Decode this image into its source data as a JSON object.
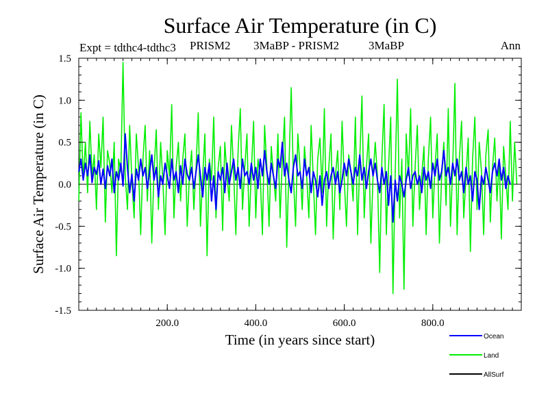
{
  "chart_data": {
    "type": "line",
    "title": "Surface Air Temperature (in C)",
    "subtitle_left": "Expt = tdthc4-tdthc3",
    "subtitle_mid1": "PRISM2",
    "subtitle_mid2": "3MaBP - PRISM2",
    "subtitle_mid3": "3MaBP",
    "subtitle_right": "Ann",
    "xlabel": "Time (in years since start)",
    "ylabel": "Surface Air Temperature (in C)",
    "xlim": [
      0,
      1000
    ],
    "ylim": [
      -1.5,
      1.5
    ],
    "x_ticks": [
      200,
      400,
      600,
      800
    ],
    "x_tick_labels": [
      "200.0",
      "400.0",
      "600.0",
      "800.0"
    ],
    "y_ticks": [
      -1.5,
      -1.0,
      -0.5,
      0.0,
      0.5,
      1.0,
      1.5
    ],
    "y_tick_labels": [
      "-1.5",
      "-1.0",
      "-0.5",
      "0.0",
      "0.5",
      "1.0",
      "1.5"
    ],
    "grid": false,
    "legend_position": "bottom-right",
    "series": [
      {
        "name": "Ocean",
        "color": "#0000ff",
        "x_start": 0,
        "x_step": 5,
        "values": [
          0.15,
          0.3,
          0.05,
          0.25,
          0.1,
          0.35,
          0.02,
          0.2,
          0.12,
          0.28,
          0.0,
          0.18,
          -0.05,
          0.22,
          0.1,
          0.3,
          -0.1,
          0.15,
          0.05,
          0.25,
          -0.02,
          0.6,
          0.2,
          -0.1,
          0.12,
          -0.2,
          0.18,
          0.05,
          0.3,
          0.1,
          0.2,
          -0.05,
          0.15,
          0.35,
          0.05,
          0.2,
          -0.15,
          0.1,
          0.0,
          0.25,
          0.1,
          -0.05,
          0.3,
          0.05,
          0.15,
          -0.1,
          0.22,
          0.0,
          0.3,
          0.12,
          0.05,
          0.2,
          -0.05,
          0.15,
          0.35,
          0.1,
          -0.15,
          0.2,
          0.05,
          0.25,
          -0.2,
          0.1,
          -0.3,
          0.15,
          0.05,
          0.2,
          -0.1,
          0.25,
          0.0,
          0.15,
          0.3,
          0.05,
          0.2,
          -0.05,
          0.3,
          0.1,
          0.15,
          0.0,
          0.25,
          0.05,
          0.2,
          -0.05,
          0.3,
          0.1,
          0.4,
          0.15,
          0.0,
          0.25,
          0.1,
          -0.05,
          0.3,
          0.2,
          0.5,
          0.1,
          0.25,
          0.05,
          -0.1,
          0.2,
          0.35,
          0.1,
          0.15,
          -0.05,
          0.3,
          0.1,
          0.2,
          -0.1,
          0.15,
          0.05,
          -0.15,
          0.1,
          -0.25,
          0.05,
          0.15,
          -0.05,
          0.1,
          0.2,
          0.0,
          0.15,
          -0.1,
          0.05,
          0.25,
          0.1,
          0.3,
          0.15,
          0.0,
          0.2,
          0.1,
          0.35,
          0.05,
          0.2,
          -0.05,
          0.15,
          0.3,
          0.1,
          0.25,
          0.05,
          -0.1,
          0.2,
          0.0,
          0.15,
          -0.25,
          0.1,
          -0.45,
          0.05,
          -0.2,
          0.1,
          0.0,
          -0.15,
          0.05,
          0.2,
          -0.05,
          0.1,
          0.15,
          0.0,
          0.1,
          -0.1,
          0.2,
          0.05,
          0.15,
          -0.05,
          0.25,
          0.1,
          0.3,
          0.05,
          0.15,
          0.4,
          0.1,
          0.2,
          0.0,
          0.25,
          0.1,
          0.3,
          0.05,
          0.15,
          -0.1,
          0.2,
          0.0,
          0.1,
          -0.2,
          0.15,
          0.05,
          -0.3,
          0.1,
          0.0,
          0.2,
          0.05,
          -0.1,
          0.15,
          0.25,
          0.1,
          0.3,
          0.05,
          0.2,
          -0.05,
          0.1,
          0.0
        ]
      },
      {
        "name": "Land",
        "color": "#00ee00",
        "x_start": 0,
        "x_step": 5,
        "values": [
          -0.2,
          0.85,
          0.05,
          0.5,
          -0.1,
          0.75,
          0.1,
          0.35,
          -0.3,
          0.6,
          0.2,
          0.8,
          -0.45,
          0.4,
          0.25,
          -0.1,
          0.5,
          -0.85,
          0.3,
          0.15,
          1.45,
          0.1,
          -0.3,
          0.7,
          0.05,
          -0.4,
          0.6,
          0.2,
          -0.6,
          0.3,
          0.7,
          -0.2,
          0.4,
          -0.7,
          0.15,
          0.65,
          -0.3,
          0.5,
          0.05,
          -0.6,
          0.4,
          0.1,
          0.95,
          -0.4,
          0.2,
          0.5,
          -0.2,
          0.3,
          0.6,
          -0.5,
          0.1,
          0.4,
          -0.3,
          0.2,
          0.85,
          -0.5,
          0.1,
          0.6,
          -0.85,
          0.3,
          0.05,
          0.8,
          -0.4,
          0.2,
          0.45,
          -0.55,
          0.5,
          0.1,
          -0.2,
          0.7,
          0.15,
          -0.6,
          0.4,
          0.9,
          -0.3,
          0.2,
          0.6,
          -0.5,
          0.15,
          0.75,
          -0.4,
          0.3,
          0.1,
          -0.6,
          0.7,
          0.2,
          -0.5,
          0.45,
          0.1,
          -0.2,
          0.6,
          -0.4,
          0.3,
          0.8,
          -0.75,
          0.2,
          1.15,
          0.1,
          -0.5,
          0.6,
          0.2,
          -0.3,
          0.45,
          0.1,
          -0.4,
          0.7,
          0.05,
          -0.6,
          0.3,
          0.55,
          -0.1,
          0.9,
          -0.5,
          0.2,
          0.6,
          -0.65,
          0.1,
          0.4,
          -0.3,
          0.75,
          0.05,
          -0.5,
          0.35,
          0.15,
          -0.2,
          0.8,
          -0.6,
          0.3,
          1.05,
          -0.4,
          0.2,
          0.6,
          -0.7,
          0.1,
          0.5,
          0.1,
          -1.05,
          0.3,
          0.95,
          -0.6,
          0.2,
          0.8,
          -1.3,
          0.1,
          1.25,
          -0.4,
          0.3,
          -1.25,
          0.6,
          0.1,
          0.9,
          -0.5,
          0.2,
          0.7,
          -0.3,
          0.1,
          0.45,
          -0.6,
          0.3,
          0.8,
          -0.4,
          0.2,
          0.6,
          -0.7,
          0.1,
          0.5,
          -0.25,
          0.9,
          -0.5,
          0.2,
          1.2,
          -0.6,
          0.3,
          0.75,
          -0.4,
          0.1,
          0.55,
          -0.8,
          0.3,
          0.8,
          -0.3,
          0.5,
          0.15,
          -0.6,
          0.35,
          0.65,
          -0.45,
          0.2,
          0.55,
          -0.2,
          0.3,
          -0.65,
          0.45,
          0.1,
          -0.3,
          0.75,
          -0.2,
          0.5,
          0.0
        ]
      }
    ],
    "legend": [
      {
        "label": "Ocean",
        "color": "#0000ff"
      },
      {
        "label": "Land",
        "color": "#00ee00"
      },
      {
        "label": "AllSurf",
        "color": "#000000"
      }
    ]
  }
}
